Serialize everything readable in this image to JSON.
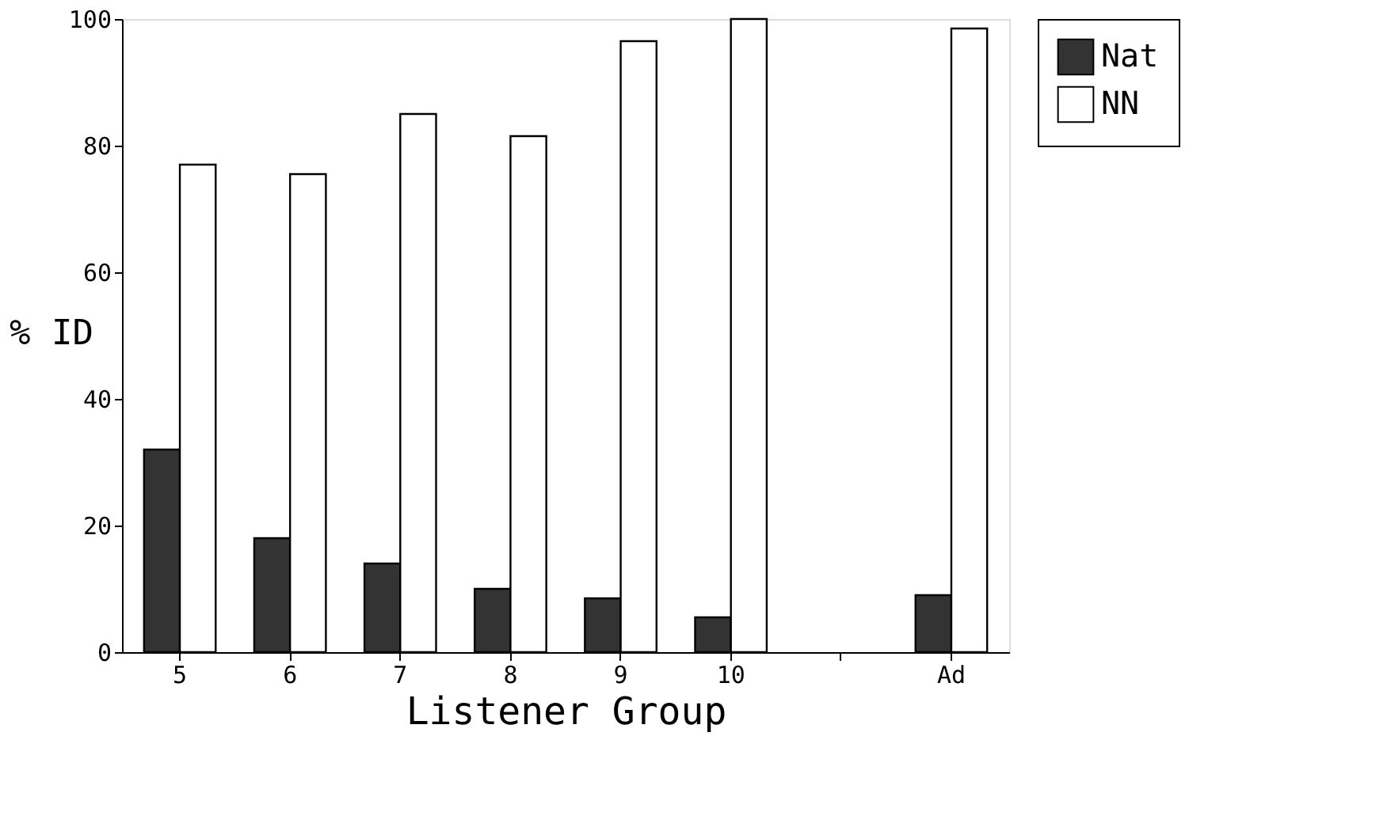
{
  "chart_data": {
    "type": "bar",
    "xlabel": "Listener Group",
    "ylabel": "% ID",
    "categories": [
      "5",
      "6",
      "7",
      "8",
      "9",
      "10",
      null,
      "Ad"
    ],
    "series": [
      {
        "name": "Nat",
        "color": "#333333",
        "values": [
          32,
          18,
          14,
          10,
          8.5,
          5.5,
          null,
          9
        ]
      },
      {
        "name": "NN",
        "color": "#ffffff",
        "values": [
          77,
          75.5,
          85,
          81.5,
          96.5,
          100,
          null,
          98.5
        ]
      }
    ],
    "ylim": [
      0,
      100
    ],
    "yticks": [
      0,
      20,
      40,
      60,
      80,
      100
    ],
    "grid": false,
    "legend": "right"
  }
}
